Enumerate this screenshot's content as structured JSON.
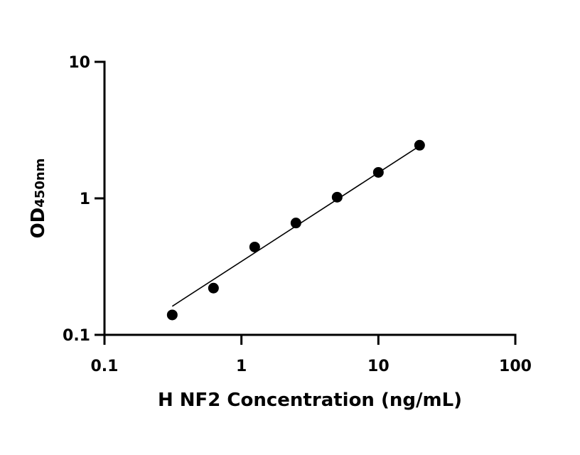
{
  "chart_data": {
    "type": "scatter",
    "title": "",
    "xlabel": "H NF2 Concentration (ng/mL)",
    "ylabel_main": "OD",
    "ylabel_sub": "450nm",
    "xscale": "log",
    "yscale": "log",
    "xlim": [
      0.1,
      100
    ],
    "ylim": [
      0.1,
      10
    ],
    "x_ticks": [
      0.1,
      1,
      10,
      100
    ],
    "x_tick_labels": [
      "0.1",
      "1",
      "10",
      "100"
    ],
    "y_ticks": [
      0.1,
      1,
      10
    ],
    "y_tick_labels": [
      "0.1",
      "1",
      "10"
    ],
    "grid": false,
    "legend": "none",
    "marker_color": "#000000",
    "series": [
      {
        "x": [
          0.3125,
          0.625,
          1.25,
          2.5,
          5,
          10,
          20
        ],
        "y": [
          0.14,
          0.22,
          0.44,
          0.66,
          1.02,
          1.55,
          2.45
        ]
      }
    ],
    "fit_line": {
      "x": [
        0.3125,
        20
      ],
      "y": [
        0.162,
        2.42
      ]
    }
  }
}
